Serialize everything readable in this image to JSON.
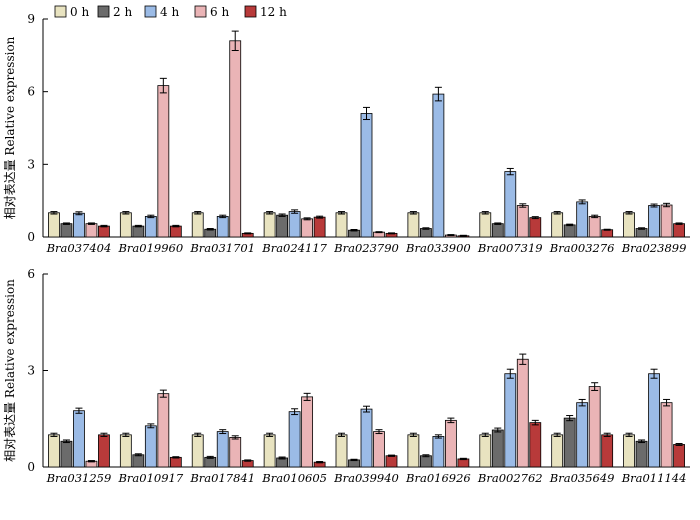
{
  "legend": {
    "items": [
      {
        "label": "0 h",
        "color": "#e8e3c0"
      },
      {
        "label": "2 h",
        "color": "#6b6b6b"
      },
      {
        "label": "4 h",
        "color": "#9bbbe6"
      },
      {
        "label": "6 h",
        "color": "#eab4b6"
      },
      {
        "label": "12 h",
        "color": "#b83a3a"
      }
    ]
  },
  "chart_data": [
    {
      "type": "bar",
      "ylabel": "相对表达量 Relative expression",
      "ylim": [
        0,
        9
      ],
      "yticks": [
        0,
        3,
        6,
        9
      ],
      "categories": [
        "Bra037404",
        "Bra019960",
        "Bra031701",
        "Bra024117",
        "Bra023790",
        "Bra033900",
        "Bra007319",
        "Bra003276",
        "Bra023899"
      ],
      "series": [
        {
          "name": "0 h",
          "values": [
            1.0,
            1.0,
            1.0,
            1.0,
            1.0,
            1.0,
            1.0,
            1.0,
            1.0
          ],
          "errors": [
            0.05,
            0.05,
            0.05,
            0.05,
            0.05,
            0.05,
            0.05,
            0.05,
            0.05
          ]
        },
        {
          "name": "2 h",
          "values": [
            0.55,
            0.45,
            0.32,
            0.9,
            0.28,
            0.35,
            0.55,
            0.5,
            0.35
          ],
          "errors": [
            0.03,
            0.03,
            0.03,
            0.05,
            0.03,
            0.03,
            0.03,
            0.03,
            0.03
          ]
        },
        {
          "name": "4 h",
          "values": [
            0.98,
            0.85,
            0.85,
            1.05,
            5.1,
            5.9,
            2.7,
            1.45,
            1.3
          ],
          "errors": [
            0.06,
            0.05,
            0.05,
            0.07,
            0.25,
            0.28,
            0.13,
            0.08,
            0.06
          ]
        },
        {
          "name": "6 h",
          "values": [
            0.55,
            6.25,
            8.1,
            0.75,
            0.2,
            0.08,
            1.3,
            0.85,
            1.32
          ],
          "errors": [
            0.03,
            0.3,
            0.4,
            0.04,
            0.02,
            0.02,
            0.07,
            0.05,
            0.07
          ]
        },
        {
          "name": "12 h",
          "values": [
            0.45,
            0.45,
            0.15,
            0.82,
            0.15,
            0.05,
            0.8,
            0.3,
            0.55
          ],
          "errors": [
            0.03,
            0.03,
            0.02,
            0.04,
            0.02,
            0.02,
            0.04,
            0.02,
            0.03
          ]
        }
      ]
    },
    {
      "type": "bar",
      "ylabel": "相对表达量 Relative expression",
      "ylim": [
        0,
        6
      ],
      "yticks": [
        0,
        3,
        6
      ],
      "categories": [
        "Bra031259",
        "Bra010917",
        "Bra017841",
        "Bra010605",
        "Bra039940",
        "Bra016926",
        "Bra002762",
        "Bra035649",
        "Bra011144"
      ],
      "series": [
        {
          "name": "0 h",
          "values": [
            1.0,
            1.0,
            1.0,
            1.0,
            1.0,
            1.0,
            1.0,
            1.0,
            1.0
          ],
          "errors": [
            0.05,
            0.05,
            0.05,
            0.05,
            0.05,
            0.05,
            0.05,
            0.05,
            0.05
          ]
        },
        {
          "name": "2 h",
          "values": [
            0.8,
            0.38,
            0.3,
            0.28,
            0.22,
            0.35,
            1.15,
            1.52,
            0.8
          ],
          "errors": [
            0.04,
            0.03,
            0.03,
            0.03,
            0.02,
            0.03,
            0.06,
            0.08,
            0.04
          ]
        },
        {
          "name": "4 h",
          "values": [
            1.75,
            1.28,
            1.1,
            1.72,
            1.8,
            0.95,
            2.9,
            2.0,
            2.9
          ],
          "errors": [
            0.08,
            0.06,
            0.06,
            0.09,
            0.09,
            0.05,
            0.14,
            0.1,
            0.14
          ]
        },
        {
          "name": "6 h",
          "values": [
            0.18,
            2.28,
            0.92,
            2.18,
            1.1,
            1.45,
            3.35,
            2.5,
            2.0
          ],
          "errors": [
            0.02,
            0.11,
            0.05,
            0.11,
            0.06,
            0.07,
            0.16,
            0.12,
            0.1
          ]
        },
        {
          "name": "12 h",
          "values": [
            1.0,
            0.3,
            0.2,
            0.15,
            0.35,
            0.25,
            1.38,
            1.0,
            0.7
          ],
          "errors": [
            0.05,
            0.02,
            0.02,
            0.02,
            0.02,
            0.02,
            0.07,
            0.05,
            0.03
          ]
        }
      ]
    }
  ]
}
